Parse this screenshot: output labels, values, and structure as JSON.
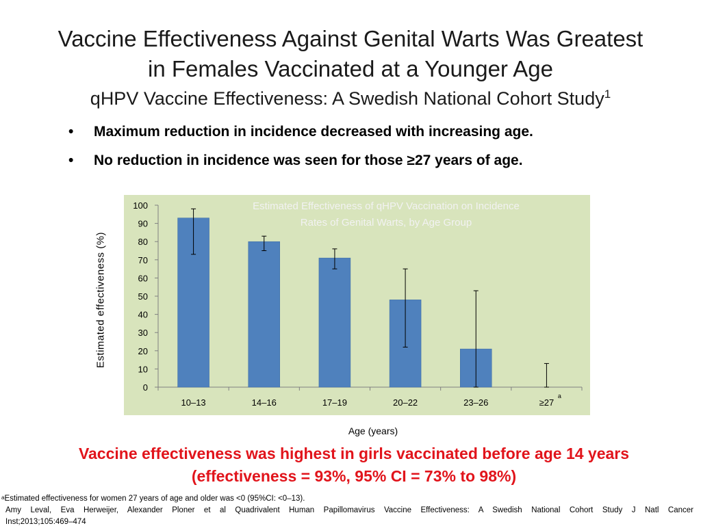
{
  "title": {
    "line1": "Vaccine Effectiveness Against Genital Warts Was Greatest",
    "line2": "in Females Vaccinated at a Younger Age"
  },
  "subtitle": {
    "text": "qHPV Vaccine Effectiveness: A Swedish National Cohort Study",
    "sup": "1"
  },
  "bullets": [
    {
      "marker": "•",
      "text": "Maximum reduction in incidence decreased with increasing age."
    },
    {
      "marker": "•",
      "text": "No reduction in incidence was seen for those ≥27 years of age."
    }
  ],
  "chart_data": {
    "type": "bar",
    "title": "Estimated Effectiveness of qHPV Vaccination on Incidence Rates of Genital Warts, by Age Group",
    "title_lines": [
      "Estimated Effectiveness of qHPV Vaccination on Incidence",
      "Rates of Genital Warts, by Age Group"
    ],
    "xlabel": "Age (years)",
    "ylabel": "Estimated effectiveness (%)",
    "categories": [
      "10–13",
      "14–16",
      "17–19",
      "20–22",
      "23–26",
      "≥27"
    ],
    "category_notes": [
      "",
      "",
      "",
      "",
      "",
      "a"
    ],
    "values": [
      93,
      80,
      71,
      48,
      21,
      null
    ],
    "ci_low": [
      73,
      75,
      65,
      22,
      0,
      0
    ],
    "ci_high": [
      98,
      83,
      76,
      65,
      53,
      13
    ],
    "ylim": [
      0,
      100
    ],
    "yticks": [
      0,
      10,
      20,
      30,
      40,
      50,
      60,
      70,
      80,
      90,
      100
    ],
    "grid": false,
    "colors": {
      "bar": "#4f81bd",
      "bar_edge": "#3a6aa5",
      "plot_bg": "#d8e4bc",
      "title": "#f2f2f2"
    }
  },
  "conclusion": {
    "line1": "Vaccine effectiveness was highest in girls vaccinated before age 14 years",
    "line2": "(effectiveness = 93%, 95% CI = 73% to 98%)",
    "color": "#e1141b"
  },
  "footnotes": {
    "a_marker": "a",
    "a_text": "Estimated effectiveness for women 27 years of age and older was <0 (95%CI: <0–13).",
    "citation_line1": "Amy Leval, Eva Herweijer, Alexander Ploner et al Quadrivalent Human Papillomavirus Vaccine Effectiveness: A Swedish National Cohort Study J Natl Cancer",
    "citation_line2": "Inst;2013;105:469–474"
  }
}
